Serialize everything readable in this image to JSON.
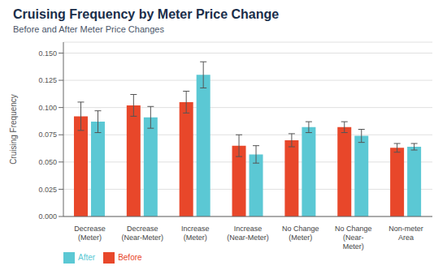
{
  "chart_data": {
    "type": "bar",
    "title": "Cruising Frequency by Meter Price Change",
    "subtitle": "Before and After Meter Price Changes",
    "ylabel": "Cruising Frequency",
    "categories": [
      "Decrease (Meter)",
      "Decrease (Near-Meter)",
      "Increase (Meter)",
      "Increase (Near-Meter)",
      "No Change (Meter)",
      "No Change (Near-\nMeter)",
      "Non-meter Area"
    ],
    "series": [
      {
        "name": "Before",
        "color": "#E8472A",
        "values": [
          0.092,
          0.102,
          0.105,
          0.065,
          0.07,
          0.082,
          0.063
        ],
        "errors": [
          0.013,
          0.01,
          0.01,
          0.01,
          0.006,
          0.005,
          0.004
        ]
      },
      {
        "name": "After",
        "color": "#5BC8D4",
        "values": [
          0.087,
          0.091,
          0.13,
          0.057,
          0.082,
          0.074,
          0.064
        ],
        "errors": [
          0.01,
          0.01,
          0.012,
          0.008,
          0.005,
          0.006,
          0.003
        ]
      }
    ],
    "ylim": [
      0,
      0.16
    ],
    "yticks": [
      {
        "value": 0,
        "label": "0.000"
      },
      0.025,
      {
        "value": 0.05,
        "label": "0.050"
      },
      0.075,
      {
        "value": 0.1,
        "label": "0.100"
      },
      0.125,
      {
        "value": 0.15,
        "label": "0.150"
      }
    ],
    "grid": true,
    "legend": "bottom"
  }
}
